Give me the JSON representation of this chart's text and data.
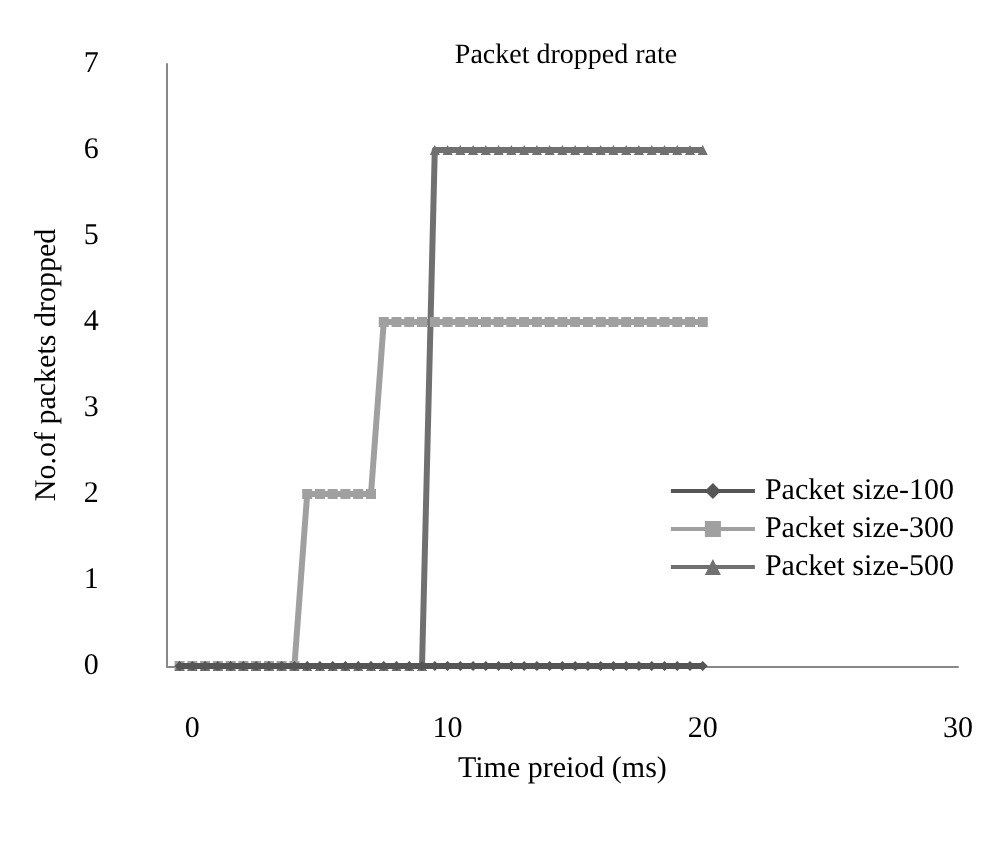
{
  "chart_data": {
    "type": "line",
    "title": "Packet dropped rate",
    "xlabel": "Time preiod (ms)",
    "ylabel": "No.of packets dropped",
    "x": [
      -0.5,
      0,
      0.5,
      1,
      1.5,
      2,
      2.5,
      3,
      3.5,
      4,
      4.5,
      5,
      5.5,
      6,
      6.5,
      7,
      7.5,
      8,
      8.5,
      9,
      9.5,
      10,
      10.5,
      11,
      11.5,
      12,
      12.5,
      13,
      13.5,
      14,
      14.5,
      15,
      15.5,
      16,
      16.5,
      17,
      17.5,
      18,
      18.5,
      19,
      19.5,
      20
    ],
    "series": [
      {
        "name": "Packet size-100",
        "color": "#555555",
        "marker": "diamond",
        "values": [
          0,
          0,
          0,
          0,
          0,
          0,
          0,
          0,
          0,
          0,
          0,
          0,
          0,
          0,
          0,
          0,
          0,
          0,
          0,
          0,
          0,
          0,
          0,
          0,
          0,
          0,
          0,
          0,
          0,
          0,
          0,
          0,
          0,
          0,
          0,
          0,
          0,
          0,
          0,
          0,
          0,
          0
        ]
      },
      {
        "name": "Packet size-300",
        "color": "#a0a0a0",
        "marker": "square",
        "values": [
          0,
          0,
          0,
          0,
          0,
          0,
          0,
          0,
          0,
          0,
          2,
          2,
          2,
          2,
          2,
          2,
          4,
          4,
          4,
          4,
          4,
          4,
          4,
          4,
          4,
          4,
          4,
          4,
          4,
          4,
          4,
          4,
          4,
          4,
          4,
          4,
          4,
          4,
          4,
          4,
          4,
          4
        ]
      },
      {
        "name": "Packet size-500",
        "color": "#707070",
        "marker": "triangle",
        "values": [
          0,
          0,
          0,
          0,
          0,
          0,
          0,
          0,
          0,
          0,
          0,
          0,
          0,
          0,
          0,
          0,
          0,
          0,
          0,
          0,
          6,
          6,
          6,
          6,
          6,
          6,
          6,
          6,
          6,
          6,
          6,
          6,
          6,
          6,
          6,
          6,
          6,
          6,
          6,
          6,
          6,
          6
        ]
      }
    ],
    "xlim": [
      -1,
      30
    ],
    "xticks": [
      0,
      10,
      20,
      30
    ],
    "ylim": [
      0,
      7
    ],
    "yticks": [
      0,
      1,
      2,
      3,
      4,
      5,
      6,
      7
    ],
    "grid": false,
    "legend": "right"
  }
}
